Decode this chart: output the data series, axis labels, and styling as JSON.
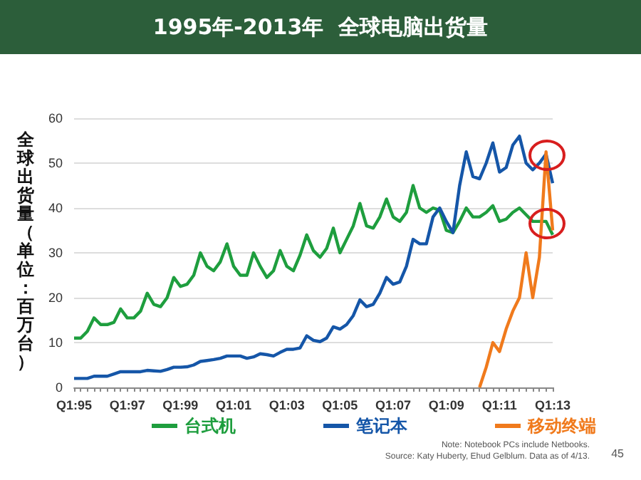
{
  "chart_data": {
    "type": "line",
    "title": "1995年-2013年  全球电脑出货量",
    "ylabel": "全球出货量（单位：百万台）",
    "categories": [
      "Q1:95",
      null,
      null,
      null,
      null,
      null,
      null,
      null,
      "Q1:97",
      null,
      null,
      null,
      null,
      null,
      null,
      null,
      "Q1:99",
      null,
      null,
      null,
      null,
      null,
      null,
      null,
      "Q1:01",
      null,
      null,
      null,
      null,
      null,
      null,
      null,
      "Q1:03",
      null,
      null,
      null,
      null,
      null,
      null,
      null,
      "Q1:05",
      null,
      null,
      null,
      null,
      null,
      null,
      null,
      "Q1:07",
      null,
      null,
      null,
      null,
      null,
      null,
      null,
      "Q1:09",
      null,
      null,
      null,
      null,
      null,
      null,
      null,
      "Q1:11",
      null,
      null,
      null,
      null,
      null,
      null,
      null,
      "Q1:13"
    ],
    "series": [
      {
        "name": "台式机",
        "color": "#1e9e3e",
        "values": [
          11,
          11,
          12.5,
          15.5,
          14,
          14,
          14.5,
          17.5,
          15.5,
          15.5,
          17,
          21,
          18.5,
          18,
          20,
          24.5,
          22.5,
          23,
          25,
          30,
          27,
          26,
          28,
          32,
          27,
          25,
          25,
          30,
          27,
          24.5,
          26,
          30.5,
          27,
          26,
          29.5,
          34,
          30.5,
          29,
          31,
          35.5,
          30,
          33,
          36,
          41,
          36,
          35.5,
          38,
          42,
          38,
          37,
          39,
          45,
          40,
          39,
          40,
          39.5,
          35,
          34.5,
          37,
          40,
          38,
          38,
          39,
          40.5,
          37,
          37.5,
          39,
          40,
          38.5,
          37,
          37,
          37,
          34
        ]
      },
      {
        "name": "笔记本",
        "color": "#1556a8",
        "values": [
          2,
          2,
          2,
          2.5,
          2.5,
          2.5,
          3,
          3.5,
          3.5,
          3.5,
          3.5,
          3.8,
          3.7,
          3.6,
          4,
          4.5,
          4.5,
          4.6,
          5,
          5.8,
          6,
          6.2,
          6.5,
          7,
          7,
          7,
          6.5,
          6.8,
          7.5,
          7.3,
          7,
          7.8,
          8.5,
          8.5,
          8.8,
          11.5,
          10.5,
          10.2,
          11,
          13.5,
          13,
          14,
          16,
          19.5,
          18,
          18.5,
          21,
          24.5,
          23,
          23.5,
          27,
          33,
          32,
          32,
          38,
          40,
          37,
          34.5,
          45,
          52.5,
          47,
          46.5,
          50,
          54.5,
          48,
          49,
          54,
          56,
          50,
          48.5,
          50,
          52,
          45.5
        ]
      },
      {
        "name": "移动终端",
        "color": "#f07a1c",
        "values": [
          null,
          null,
          null,
          null,
          null,
          null,
          null,
          null,
          null,
          null,
          null,
          null,
          null,
          null,
          null,
          null,
          null,
          null,
          null,
          null,
          null,
          null,
          null,
          null,
          null,
          null,
          null,
          null,
          null,
          null,
          null,
          null,
          null,
          null,
          null,
          null,
          null,
          null,
          null,
          null,
          null,
          null,
          null,
          null,
          null,
          null,
          null,
          null,
          null,
          null,
          null,
          null,
          null,
          null,
          null,
          null,
          null,
          null,
          null,
          null,
          null,
          0,
          4.5,
          10,
          8,
          13,
          17,
          20,
          30,
          20,
          29,
          52.5,
          35
        ]
      }
    ],
    "ylim": [
      0,
      60
    ],
    "yticks": [
      0,
      10,
      20,
      30,
      40,
      50,
      60
    ],
    "grid": "y",
    "legend": "bottom",
    "marker": "none",
    "annotations": [
      "Note: Notebook PCs include Netbooks.",
      "Source: Katy Huberty, Ehud Gelblum. Data as of 4/13.",
      "45"
    ]
  }
}
